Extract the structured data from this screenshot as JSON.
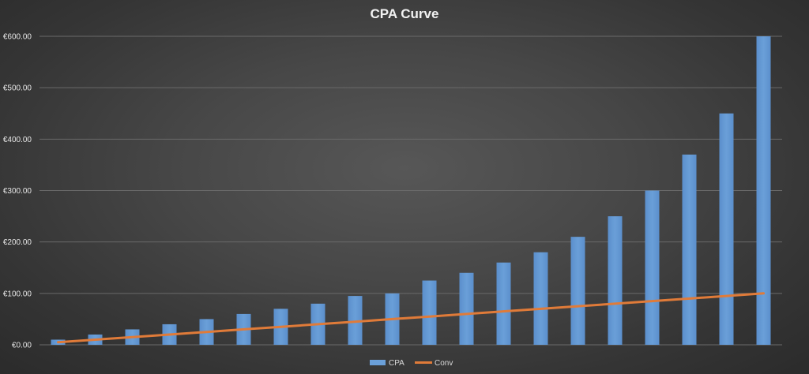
{
  "chart_data": {
    "type": "bar",
    "title": "CPA Curve",
    "xlabel": "",
    "ylabel": "",
    "ylim": [
      0,
      600
    ],
    "yticks": [
      "€0.00",
      "€100.00",
      "€200.00",
      "€300.00",
      "€400.00",
      "€500.00",
      "€600.00"
    ],
    "grid": true,
    "legend_position": "bottom",
    "categories": [
      "",
      "",
      "",
      "",
      "",
      "",
      "",
      "",
      "",
      "",
      "",
      "",
      "",
      "",
      "",
      "",
      "",
      "",
      "",
      ""
    ],
    "series": [
      {
        "name": "CPA",
        "type": "bar",
        "color": "#6a9fd8",
        "values": [
          10,
          20,
          30,
          40,
          50,
          60,
          70,
          80,
          95,
          100,
          125,
          140,
          160,
          180,
          210,
          250,
          300,
          370,
          450,
          600
        ]
      },
      {
        "name": "Conv",
        "type": "line",
        "color": "#e07b39",
        "values": [
          5,
          10,
          15,
          20,
          25,
          30,
          35,
          40,
          45,
          50,
          55,
          60,
          65,
          70,
          75,
          80,
          85,
          90,
          95,
          100
        ]
      }
    ]
  }
}
